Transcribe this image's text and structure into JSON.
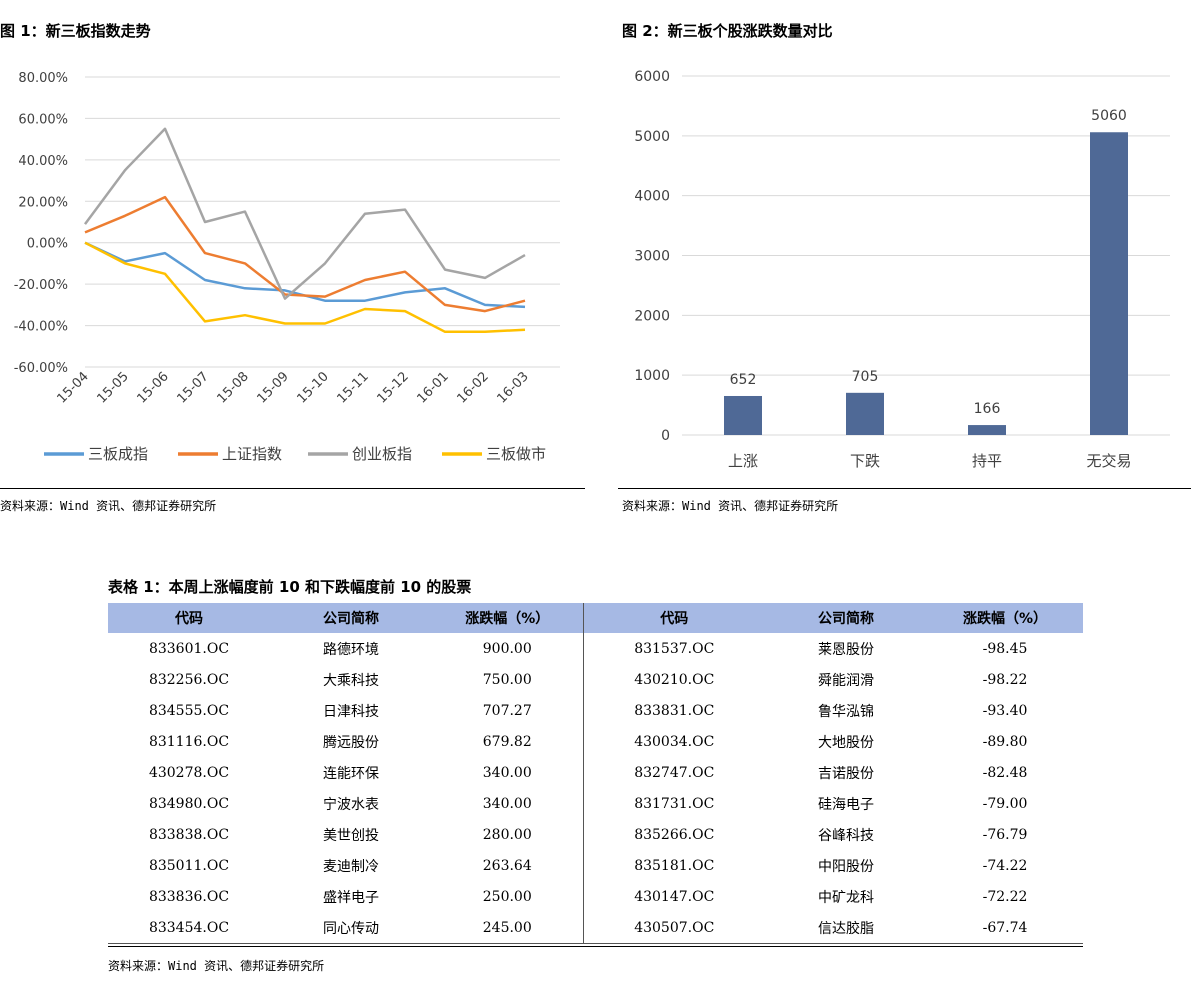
{
  "fig1": {
    "title": "图 1：新三板指数走势",
    "source": "资料来源：Wind 资讯、德邦证券研究所"
  },
  "fig2": {
    "title": "图 2：新三板个股涨跌数量对比",
    "source": "资料来源：Wind 资讯、德邦证券研究所"
  },
  "table1": {
    "title": "表格 1：本周上涨幅度前 10 和下跌幅度前 10 的股票",
    "headers": [
      "代码",
      "公司简称",
      "涨跌幅（%）",
      "代码",
      "公司简称",
      "涨跌幅（%）"
    ],
    "rows": [
      [
        "833601.OC",
        "路德环境",
        "900.00",
        "831537.OC",
        "莱恩股份",
        "-98.45"
      ],
      [
        "832256.OC",
        "大乘科技",
        "750.00",
        "430210.OC",
        "舜能润滑",
        "-98.22"
      ],
      [
        "834555.OC",
        "日津科技",
        "707.27",
        "833831.OC",
        "鲁华泓锦",
        "-93.40"
      ],
      [
        "831116.OC",
        "腾远股份",
        "679.82",
        "430034.OC",
        "大地股份",
        "-89.80"
      ],
      [
        "430278.OC",
        "连能环保",
        "340.00",
        "832747.OC",
        "吉诺股份",
        "-82.48"
      ],
      [
        "834980.OC",
        "宁波水表",
        "340.00",
        "831731.OC",
        "硅海电子",
        "-79.00"
      ],
      [
        "833838.OC",
        "美世创投",
        "280.00",
        "835266.OC",
        "谷峰科技",
        "-76.79"
      ],
      [
        "835011.OC",
        "麦迪制冷",
        "263.64",
        "835181.OC",
        "中阳股份",
        "-74.22"
      ],
      [
        "833836.OC",
        "盛祥电子",
        "250.00",
        "430147.OC",
        "中矿龙科",
        "-72.22"
      ],
      [
        "833454.OC",
        "同心传动",
        "245.00",
        "430507.OC",
        "信达胶脂",
        "-67.74"
      ]
    ],
    "source": "资料来源：Wind 资讯、德邦证券研究所"
  },
  "chart_data": [
    {
      "type": "line",
      "title": "",
      "ylim": [
        -60,
        80
      ],
      "y_ticks": [
        "80.00%",
        "60.00%",
        "40.00%",
        "20.00%",
        "0.00%",
        "-20.00%",
        "-40.00%",
        "-60.00%"
      ],
      "categories": [
        "15-04",
        "15-05",
        "15-06",
        "15-07",
        "15-08",
        "15-09",
        "15-10",
        "15-11",
        "15-12",
        "16-01",
        "16-02",
        "16-03"
      ],
      "grid": true,
      "legend": "bottom",
      "series": [
        {
          "name": "三板成指",
          "color": "#5b9bd5",
          "values": [
            0,
            -9,
            -5,
            -18,
            -22,
            -23,
            -28,
            -28,
            -24,
            -22,
            -30,
            -31
          ]
        },
        {
          "name": "上证指数",
          "color": "#ed7d31",
          "values": [
            5,
            13,
            22,
            -5,
            -10,
            -25,
            -26,
            -18,
            -14,
            -30,
            -33,
            -28
          ]
        },
        {
          "name": "创业板指",
          "color": "#a5a5a5",
          "values": [
            9,
            35,
            55,
            10,
            15,
            -27,
            -10,
            14,
            16,
            -13,
            -17,
            -6
          ]
        },
        {
          "name": "三板做市",
          "color": "#ffc000",
          "values": [
            0,
            -10,
            -15,
            -38,
            -35,
            -39,
            -39,
            -32,
            -33,
            -43,
            -43,
            -42
          ]
        }
      ]
    },
    {
      "type": "bar",
      "title": "",
      "categories": [
        "上涨",
        "下跌",
        "持平",
        "无交易"
      ],
      "values": [
        652,
        705,
        166,
        5060
      ],
      "ylim": [
        0,
        6000
      ],
      "y_ticks": [
        "0",
        "1000",
        "2000",
        "3000",
        "4000",
        "5000",
        "6000"
      ],
      "color": "#4f6996",
      "grid": true
    }
  ]
}
